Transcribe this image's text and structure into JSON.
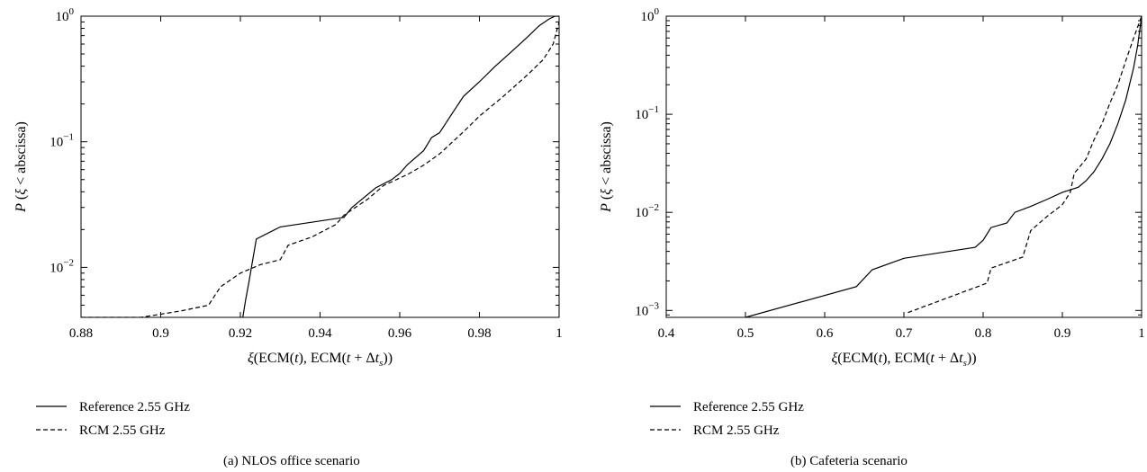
{
  "chart_data": [
    {
      "type": "line",
      "caption": "(a)  NLOS office scenario",
      "xlabel": "ξ(ECM(t), ECM(t + Δt_s))",
      "ylabel": "P (ξ < abscissa)",
      "xlim": [
        0.88,
        1.0
      ],
      "ylim": [
        0.004,
        1.0
      ],
      "yscale": "log",
      "xticks": [
        0.88,
        0.9,
        0.92,
        0.94,
        0.96,
        0.98,
        1.0
      ],
      "xtick_labels": [
        "0.88",
        "0.9",
        "0.92",
        "0.94",
        "0.96",
        "0.98",
        "1"
      ],
      "yticks": [
        0.01,
        0.1,
        1.0
      ],
      "ytick_labels": [
        {
          "base": "10",
          "exp": "−2"
        },
        {
          "base": "10",
          "exp": "−1"
        },
        {
          "base": "10",
          "exp": "0"
        }
      ],
      "grid": false,
      "legend_position": "below-left",
      "series": [
        {
          "name": "Reference 2.55 GHz",
          "style": "solid",
          "x": [
            0.9206,
            0.9213,
            0.9221,
            0.9229,
            0.924,
            0.93,
            0.946,
            0.948,
            0.954,
            0.958,
            0.96,
            0.962,
            0.966,
            0.968,
            0.97,
            0.973,
            0.976,
            0.98,
            0.984,
            0.988,
            0.992,
            0.995,
            0.9975,
            0.999,
            1.0
          ],
          "y": [
            0.004,
            0.0055,
            0.0075,
            0.0105,
            0.0168,
            0.021,
            0.025,
            0.03,
            0.043,
            0.05,
            0.056,
            0.066,
            0.085,
            0.108,
            0.118,
            0.165,
            0.23,
            0.3,
            0.4,
            0.52,
            0.68,
            0.84,
            0.95,
            1.0,
            1.0
          ]
        },
        {
          "name": "RCM 2.55 GHz",
          "style": "dashed",
          "x": [
            0.88,
            0.895,
            0.905,
            0.912,
            0.915,
            0.92,
            0.925,
            0.93,
            0.932,
            0.938,
            0.944,
            0.946,
            0.952,
            0.956,
            0.962,
            0.966,
            0.97,
            0.976,
            0.98,
            0.986,
            0.992,
            0.996,
            0.9985,
            1.0
          ],
          "y": [
            0.004,
            0.004,
            0.0045,
            0.005,
            0.007,
            0.009,
            0.0105,
            0.0115,
            0.015,
            0.0175,
            0.022,
            0.026,
            0.035,
            0.045,
            0.055,
            0.065,
            0.08,
            0.12,
            0.16,
            0.23,
            0.34,
            0.45,
            0.6,
            0.9
          ]
        }
      ]
    },
    {
      "type": "line",
      "caption": "(b)  Cafeteria scenario",
      "xlabel": "ξ(ECM(t), ECM(t + Δt_s))",
      "ylabel": "P (ξ < abscissa)",
      "xlim": [
        0.4,
        1.0
      ],
      "ylim": [
        0.00085,
        1.0
      ],
      "yscale": "log",
      "xticks": [
        0.4,
        0.5,
        0.6,
        0.7,
        0.8,
        0.9,
        1.0
      ],
      "xtick_labels": [
        "0.4",
        "0.5",
        "0.6",
        "0.7",
        "0.8",
        "0.9",
        "1"
      ],
      "yticks": [
        0.001,
        0.01,
        0.1,
        1.0
      ],
      "ytick_labels": [
        {
          "base": "10",
          "exp": "−3"
        },
        {
          "base": "10",
          "exp": "−2"
        },
        {
          "base": "10",
          "exp": "−1"
        },
        {
          "base": "10",
          "exp": "0"
        }
      ],
      "grid": false,
      "legend_position": "below-left",
      "series": [
        {
          "name": "Reference 2.55 GHz",
          "style": "solid",
          "x": [
            0.5,
            0.64,
            0.66,
            0.7,
            0.79,
            0.8,
            0.81,
            0.83,
            0.84,
            0.86,
            0.88,
            0.9,
            0.92,
            0.93,
            0.94,
            0.95,
            0.96,
            0.97,
            0.98,
            0.99,
            0.995,
            1.0
          ],
          "y": [
            0.00085,
            0.00175,
            0.0026,
            0.0034,
            0.0044,
            0.0052,
            0.007,
            0.0078,
            0.01,
            0.0115,
            0.0135,
            0.016,
            0.018,
            0.021,
            0.026,
            0.035,
            0.05,
            0.08,
            0.14,
            0.3,
            0.5,
            1.0
          ]
        },
        {
          "name": "RCM 2.55 GHz",
          "style": "dashed",
          "x": [
            0.705,
            0.805,
            0.81,
            0.85,
            0.86,
            0.88,
            0.9,
            0.91,
            0.915,
            0.93,
            0.94,
            0.95,
            0.96,
            0.97,
            0.98,
            0.99,
            1.0
          ],
          "y": [
            0.00095,
            0.0019,
            0.0027,
            0.0035,
            0.0065,
            0.009,
            0.012,
            0.016,
            0.025,
            0.035,
            0.055,
            0.08,
            0.13,
            0.2,
            0.35,
            0.6,
            1.0
          ]
        }
      ]
    }
  ]
}
